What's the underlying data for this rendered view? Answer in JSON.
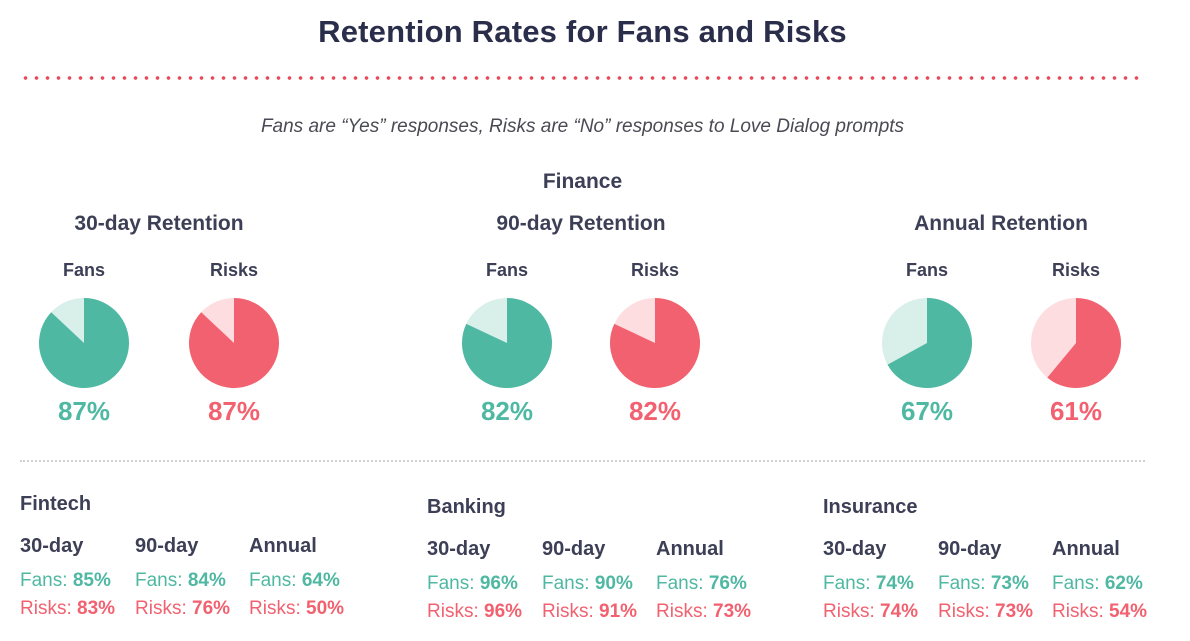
{
  "header": {
    "title": "Retention Rates for Fans and Risks",
    "subtitle": "Fans are “Yes” responses, Risks are “No” responses to Love Dialog prompts",
    "section": "Finance"
  },
  "colors": {
    "fans": "#4fb8a3",
    "fans_light": "#d8efea",
    "risks": "#f2616f",
    "risks_light": "#fddde0"
  },
  "chart_data": {
    "type": "pie",
    "title": "Finance",
    "groups": [
      {
        "name": "30-day Retention",
        "series": [
          {
            "name": "Fans",
            "value": 87,
            "label": "87%"
          },
          {
            "name": "Risks",
            "value": 87,
            "label": "87%"
          }
        ]
      },
      {
        "name": "90-day Retention",
        "series": [
          {
            "name": "Fans",
            "value": 82,
            "label": "82%"
          },
          {
            "name": "Risks",
            "value": 82,
            "label": "82%"
          }
        ]
      },
      {
        "name": "Annual Retention",
        "series": [
          {
            "name": "Fans",
            "value": 67,
            "label": "67%"
          },
          {
            "name": "Risks",
            "value": 61,
            "label": "61%"
          }
        ]
      }
    ]
  },
  "industries": [
    {
      "name": "Fintech",
      "columns": [
        {
          "head": "30-day",
          "fans_label": "Fans:",
          "fans": "85%",
          "risks_label": "Risks:",
          "risks": "83%"
        },
        {
          "head": "90-day",
          "fans_label": "Fans:",
          "fans": "84%",
          "risks_label": "Risks:",
          "risks": "76%"
        },
        {
          "head": "Annual",
          "fans_label": "Fans:",
          "fans": "64%",
          "risks_label": "Risks:",
          "risks": "50%"
        }
      ]
    },
    {
      "name": "Banking",
      "columns": [
        {
          "head": "30-day",
          "fans_label": "Fans:",
          "fans": "96%",
          "risks_label": "Risks:",
          "risks": "96%"
        },
        {
          "head": "90-day",
          "fans_label": "Fans:",
          "fans": "90%",
          "risks_label": "Risks:",
          "risks": "91%"
        },
        {
          "head": "Annual",
          "fans_label": "Fans:",
          "fans": "76%",
          "risks_label": "Risks:",
          "risks": "73%"
        }
      ]
    },
    {
      "name": "Insurance",
      "columns": [
        {
          "head": "30-day",
          "fans_label": "Fans:",
          "fans": "74%",
          "risks_label": "Risks:",
          "risks": "74%"
        },
        {
          "head": "90-day",
          "fans_label": "Fans:",
          "fans": "73%",
          "risks_label": "Risks:",
          "risks": "73%"
        },
        {
          "head": "Annual",
          "fans_label": "Fans:",
          "fans": "62%",
          "risks_label": "Risks:",
          "risks": "54%"
        }
      ]
    }
  ]
}
